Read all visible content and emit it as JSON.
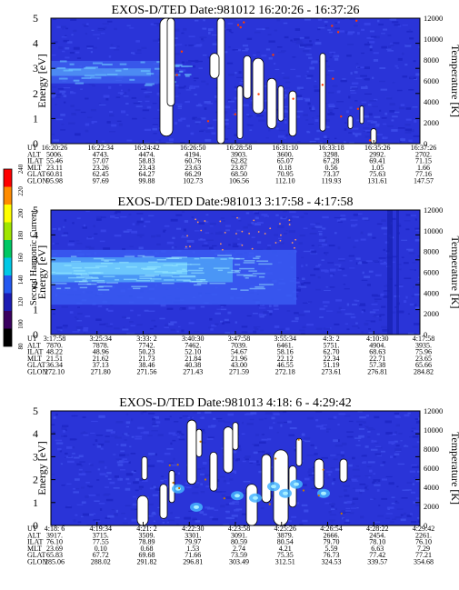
{
  "chart_data": [
    {
      "type": "heatmap",
      "title": "EXOS-D/TED   Date:981012   16:20:26 - 16:37:26",
      "ylabel": "Energy [eV]",
      "ylabel_right": "Temperature [K]",
      "ylim": [
        0,
        5
      ],
      "yticks": [
        "0",
        "1",
        "2",
        "3",
        "4",
        "5"
      ],
      "ylim_right": [
        0,
        12000
      ],
      "yticks_right": [
        "0",
        "2000",
        "4000",
        "6000",
        "8000",
        "10000",
        "12000"
      ],
      "orbit_labels": [
        "UT",
        "ALT",
        "ILAT",
        "MLT",
        "GLAT",
        "GLON"
      ],
      "orbit_columns": [
        [
          "16:20:26",
          "5006.",
          "55.46",
          "23.11",
          "60.81",
          "95.98"
        ],
        [
          "16:22:34",
          "4743.",
          "57.07",
          "23.26",
          "62.45",
          "97.69"
        ],
        [
          "16:24:42",
          "4474.",
          "58.83",
          "23.43",
          "64.27",
          "99.88"
        ],
        [
          "16:26:50",
          "4194.",
          "60.76",
          "23.63",
          "66.29",
          "102.73"
        ],
        [
          "16:28:58",
          "3903.",
          "62.82",
          "23.87",
          "68.50",
          "106.56"
        ],
        [
          "16:31:10",
          "3600.",
          "65.07",
          "0.18",
          "70.95",
          "112.10"
        ],
        [
          "16:33:18",
          "3298.",
          "67.28",
          "0.56",
          "73.37",
          "119.93"
        ],
        [
          "16:35:26",
          "2992.",
          "69.41",
          "1.05",
          "75.63",
          "131.61"
        ],
        [
          "16:37:26",
          "2702.",
          "71.15",
          "1.66",
          "77.16",
          "147.57"
        ]
      ]
    },
    {
      "type": "heatmap",
      "title": "EXOS-D/TED   Date:981013   3:17:58 - 4:17:58",
      "ylabel": "Energy [eV]",
      "ylabel_right": "Temperature [K]",
      "ylim": [
        0,
        5
      ],
      "yticks": [
        "0",
        "1",
        "2",
        "3",
        "4",
        "5"
      ],
      "ylim_right": [
        0,
        12000
      ],
      "yticks_right": [
        "0",
        "2000",
        "4000",
        "6000",
        "8000",
        "10000",
        "12000"
      ],
      "orbit_labels": [
        "UT",
        "ALT",
        "ILAT",
        "MLT",
        "GLAT",
        "GLON"
      ],
      "orbit_columns": [
        [
          "3:17:58",
          "7870.",
          "48.22",
          "21.51",
          "36.34",
          "272.10"
        ],
        [
          "3:25:34",
          "7878.",
          "48.96",
          "21.62",
          "37.13",
          "271.80"
        ],
        [
          "3:33: 2",
          "7742.",
          "50.23",
          "21.73",
          "38.46",
          "271.56"
        ],
        [
          "3:40:30",
          "7462.",
          "52.10",
          "21.84",
          "40.38",
          "271.43"
        ],
        [
          "3:47:58",
          "7039.",
          "54.67",
          "21.96",
          "43.00",
          "271.59"
        ],
        [
          "3:55:34",
          "6461.",
          "58.16",
          "22.12",
          "46.55",
          "272.18"
        ],
        [
          "4:3: 2",
          "5751.",
          "62.70",
          "22.34",
          "51.19",
          "273.61"
        ],
        [
          "4:10:30",
          "4904.",
          "68.63",
          "22.71",
          "57.38",
          "276.81"
        ],
        [
          "4:17:58",
          "3935.",
          "75.96",
          "23.65",
          "65.66",
          "284.82"
        ]
      ]
    },
    {
      "type": "heatmap",
      "title": "EXOS-D/TED   Date:981013   4:18: 6 - 4:29:42",
      "ylabel": "Energy [eV]",
      "ylabel_right": "Temperature [K]",
      "ylim": [
        0,
        5
      ],
      "yticks": [
        "0",
        "1",
        "2",
        "3",
        "4",
        "5"
      ],
      "ylim_right": [
        0,
        12000
      ],
      "yticks_right": [
        "0",
        "2000",
        "4000",
        "6000",
        "8000",
        "10000",
        "12000"
      ],
      "orbit_labels": [
        "UT",
        "ALT",
        "ILAT",
        "MLT",
        "GLAT",
        "GLON"
      ],
      "orbit_columns": [
        [
          "4:18: 6",
          "3917.",
          "76.10",
          "23.69",
          "65.83",
          "285.06"
        ],
        [
          "4:19:34",
          "3715.",
          "77.55",
          "0.10",
          "67.72",
          "288.02"
        ],
        [
          "4:21: 2",
          "3509.",
          "78.89",
          "0.68",
          "69.68",
          "291.82"
        ],
        [
          "4:22:30",
          "3301.",
          "79.97",
          "1.53",
          "71.66",
          "296.81"
        ],
        [
          "4:23:58",
          "3091.",
          "80.59",
          "2.74",
          "73.59",
          "303.49"
        ],
        [
          "4:25:26",
          "3879.",
          "80.54",
          "4.21",
          "75.35",
          "312.51"
        ],
        [
          "4:26:54",
          "2666.",
          "79.70",
          "5.59",
          "76.73",
          "324.53"
        ],
        [
          "4:28:22",
          "2454.",
          "78.10",
          "6.63",
          "77.42",
          "339.57"
        ],
        [
          "4:29:42",
          "2261.",
          "76.10",
          "7.29",
          "77.21",
          "354.68"
        ]
      ]
    }
  ],
  "colorbar": {
    "label": "Second Harmonic Current",
    "ticks": [
      "80",
      "100",
      "120",
      "140",
      "160",
      "180",
      "200",
      "220",
      "240"
    ],
    "colors": [
      "#000000",
      "#3a0060",
      "#1b1bb4",
      "#2358f0",
      "#00c8e6",
      "#00c864",
      "#a0e600",
      "#ffff00",
      "#ff8c00",
      "#ff0000"
    ]
  }
}
